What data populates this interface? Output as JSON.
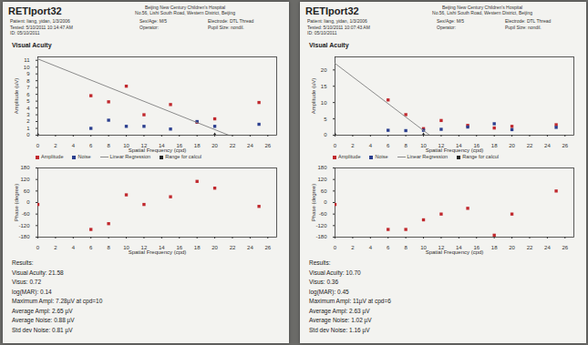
{
  "chart_data": [
    {
      "type": "scatter",
      "title": "Visual Acuity",
      "x_label": "Spatial Frequency (cpd)",
      "y_label": "Amplitude (uV)",
      "xlim": [
        0,
        27
      ],
      "xticks": [
        0,
        2,
        4,
        6,
        8,
        10,
        12,
        14,
        16,
        18,
        20,
        22,
        24,
        26
      ],
      "ylim": [
        0,
        11.5
      ],
      "yticks": [
        0,
        1,
        2,
        3,
        4,
        5,
        6,
        7,
        8,
        9,
        10,
        11
      ],
      "grid": false,
      "legend": "bottom",
      "series": [
        {
          "name": "Amplitude",
          "type": "scatter",
          "marker": "square",
          "color": "#c0282d",
          "x": [
            6,
            8,
            10,
            12,
            15,
            18,
            20,
            25
          ],
          "values": [
            5.8,
            4.9,
            7.2,
            3.0,
            4.5,
            1.9,
            2.4,
            4.8
          ]
        },
        {
          "name": "Noise",
          "type": "scatter",
          "marker": "square",
          "color": "#2b3f8f",
          "x": [
            6,
            8,
            10,
            12,
            15,
            18,
            20,
            25
          ],
          "values": [
            1.0,
            2.2,
            1.3,
            1.3,
            0.9,
            2.0,
            1.3,
            1.6
          ]
        },
        {
          "name": "Linear Regression",
          "type": "line",
          "line_style": "solid",
          "color": "#8a8a8a",
          "x": [
            0,
            21.58
          ],
          "values": [
            11.2,
            0
          ]
        },
        {
          "name": "Range for calcul",
          "type": "scatter",
          "marker": "triangle",
          "color": "#222222",
          "x": [
            0,
            20
          ],
          "values": [
            0,
            0
          ]
        }
      ]
    },
    {
      "type": "scatter",
      "x_label": "Spatial Frequency (cpd)",
      "y_label": "Phase (degree)",
      "xlim": [
        0,
        27
      ],
      "xticks": [
        0,
        2,
        4,
        6,
        8,
        10,
        12,
        14,
        16,
        18,
        20,
        22,
        24,
        26
      ],
      "ylim": [
        -180,
        180
      ],
      "yticks": [
        -180,
        -120,
        -60,
        0,
        60,
        120,
        180
      ],
      "grid": false,
      "series": [
        {
          "name": "Amplitude",
          "type": "scatter",
          "marker": "square",
          "color": "#c0282d",
          "x": [
            0,
            6,
            8,
            10,
            12,
            15,
            18,
            20,
            25
          ],
          "values": [
            -10,
            -140,
            -110,
            40,
            -10,
            30,
            110,
            75,
            -20
          ]
        }
      ]
    },
    {
      "type": "scatter",
      "title": "Visual Acuity",
      "x_label": "Spatial Frequency (cpd)",
      "y_label": "Amplitude (uV)",
      "xlim": [
        0,
        27
      ],
      "xticks": [
        0,
        2,
        4,
        6,
        8,
        10,
        12,
        14,
        16,
        18,
        20,
        22,
        24,
        26
      ],
      "ylim": [
        0,
        24
      ],
      "yticks": [
        0,
        5,
        10,
        15,
        20
      ],
      "grid": false,
      "legend": "bottom",
      "series": [
        {
          "name": "Amplitude",
          "type": "scatter",
          "marker": "square",
          "color": "#c0282d",
          "x": [
            6,
            8,
            10,
            12,
            15,
            18,
            20,
            25
          ],
          "values": [
            10.8,
            6.3,
            2.0,
            4.5,
            3.0,
            2.2,
            2.7,
            3.2
          ]
        },
        {
          "name": "Noise",
          "type": "scatter",
          "marker": "square",
          "color": "#2b3f8f",
          "x": [
            6,
            8,
            10,
            12,
            15,
            18,
            20,
            25
          ],
          "values": [
            1.5,
            1.4,
            1.5,
            1.8,
            2.5,
            3.5,
            1.7,
            2.4
          ]
        },
        {
          "name": "Linear Regression",
          "type": "line",
          "line_style": "solid",
          "color": "#8a8a8a",
          "x": [
            0,
            10.7
          ],
          "values": [
            22,
            0
          ]
        },
        {
          "name": "Range for calcul",
          "type": "scatter",
          "marker": "triangle",
          "color": "#222222",
          "x": [
            0,
            10
          ],
          "values": [
            0,
            0
          ]
        }
      ]
    },
    {
      "type": "scatter",
      "x_label": "Spatial Frequency (cpd)",
      "y_label": "Phase (degree)",
      "xlim": [
        0,
        27
      ],
      "xticks": [
        0,
        2,
        4,
        6,
        8,
        10,
        12,
        14,
        16,
        18,
        20,
        22,
        24,
        26
      ],
      "ylim": [
        -180,
        180
      ],
      "yticks": [
        -180,
        -120,
        -60,
        0,
        60,
        120,
        180
      ],
      "grid": false,
      "series": [
        {
          "name": "Amplitude",
          "type": "scatter",
          "marker": "square",
          "color": "#c0282d",
          "x": [
            0,
            6,
            8,
            10,
            12,
            15,
            18,
            20,
            25
          ],
          "values": [
            -10,
            -140,
            -140,
            -90,
            -60,
            -30,
            -170,
            -60,
            60
          ]
        }
      ]
    }
  ],
  "pages": [
    {
      "logo": "RETIport32",
      "hospital": "Beijing New Century Children's Hospital",
      "address": "No.56, Lishi South Road, Western District, Beijing",
      "fields_left": [
        "Patient: liang, yidan, 1/3/2006",
        "Tested: 5/10/2011 10:14:47 AM",
        "ID: 05/10/2011"
      ],
      "fields_mid": [
        "Sex/Age: M/5",
        "Operator:"
      ],
      "fields_right": [
        "Electrode: DTL Thread",
        "Pupil Size: nondil."
      ],
      "results": [
        "Results:",
        "Visual Acuity: 21.58",
        "Visus: 0.72",
        "log(MAR): 0.14",
        "Maximum Ampl: 7.28µV at cpd=10",
        "Average Ampl: 2.65 µV",
        "Average Noise: 0.88 µV",
        "Std dev Noise: 0.81 µV"
      ]
    },
    {
      "logo": "RETIport32",
      "hospital": "Beijing New Century Children's Hospital",
      "address": "No.56, Lishi South Road, Western District, Beijing",
      "fields_left": [
        "Patient: liang, yidan, 1/3/2006",
        "Tested: 5/10/2011 10:07:43 AM",
        "ID: 05/10/2011"
      ],
      "fields_mid": [
        "Sex/Age: M/5",
        "Operator:"
      ],
      "fields_right": [
        "Electrode: DTL Thread",
        "Pupil Size: nondil."
      ],
      "results": [
        "Results:",
        "Visual Acuity: 10.70",
        "Visus: 0.36",
        "log(MAR): 0.45",
        "Maximum Ampl: 11µV at cpd=6",
        "Average Ampl: 2.63 µV",
        "Average Noise: 1.02 µV",
        "Std dev Noise: 1.16 µV"
      ]
    }
  ]
}
